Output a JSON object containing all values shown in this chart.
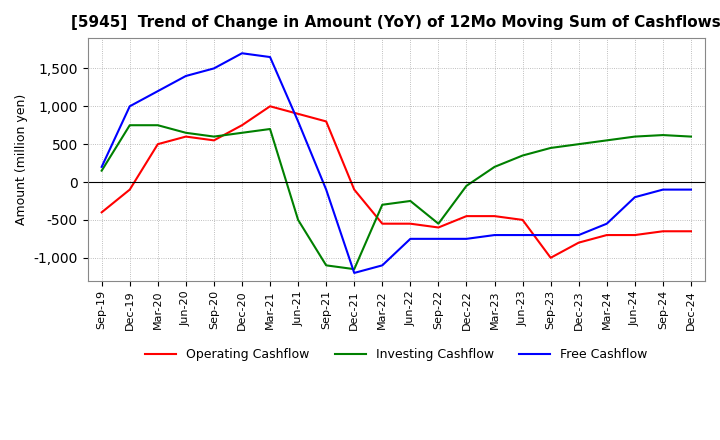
{
  "title": "[5945]  Trend of Change in Amount (YoY) of 12Mo Moving Sum of Cashflows",
  "ylabel": "Amount (million yen)",
  "x_labels": [
    "Sep-19",
    "Dec-19",
    "Mar-20",
    "Jun-20",
    "Sep-20",
    "Dec-20",
    "Mar-21",
    "Jun-21",
    "Sep-21",
    "Dec-21",
    "Mar-22",
    "Jun-22",
    "Sep-22",
    "Dec-22",
    "Mar-23",
    "Jun-23",
    "Sep-23",
    "Dec-23",
    "Mar-24",
    "Jun-24",
    "Sep-24",
    "Dec-24"
  ],
  "operating": [
    -400,
    -100,
    500,
    600,
    550,
    750,
    1000,
    900,
    800,
    -100,
    -550,
    -550,
    -600,
    -450,
    -450,
    -500,
    -1000,
    -800,
    -700,
    -700,
    -650,
    -650
  ],
  "investing": [
    150,
    750,
    750,
    650,
    600,
    650,
    700,
    -500,
    -1100,
    -1150,
    -300,
    -250,
    -550,
    -50,
    200,
    350,
    450,
    500,
    550,
    600,
    620,
    600
  ],
  "free": [
    200,
    1000,
    1200,
    1400,
    1500,
    1700,
    1650,
    800,
    -100,
    -1200,
    -1100,
    -750,
    -750,
    -750,
    -700,
    -700,
    -700,
    -700,
    -550,
    -200,
    -100,
    -100
  ],
  "ylim": [
    -1300,
    1900
  ],
  "yticks": [
    -1000,
    -500,
    0,
    500,
    1000,
    1500
  ],
  "operating_color": "#ff0000",
  "investing_color": "#008000",
  "free_color": "#0000ff",
  "background_color": "#ffffff",
  "grid_color": "#aaaaaa",
  "title_fontsize": 11,
  "label_fontsize": 9,
  "tick_fontsize": 8
}
